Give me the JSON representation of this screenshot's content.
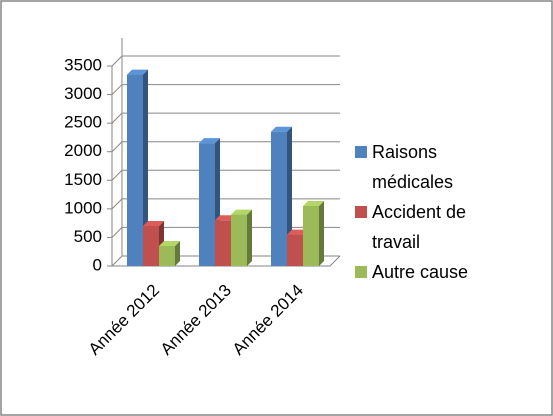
{
  "chart_data": {
    "type": "bar3d",
    "categories": [
      "Année 2012",
      "Année 2013",
      "Année 2014"
    ],
    "series": [
      {
        "name": "Raisons médicales",
        "color": "#4f81bd",
        "values": [
          3350,
          2150,
          2350
        ]
      },
      {
        "name": "Accident de travail",
        "color": "#c0504d",
        "values": [
          700,
          800,
          550
        ]
      },
      {
        "name": "Autre cause",
        "color": "#9bbb59",
        "values": [
          350,
          900,
          1050
        ]
      }
    ],
    "ylim": [
      0,
      3500
    ],
    "yticks": [
      0,
      500,
      1000,
      1500,
      2000,
      2500,
      3000,
      3500
    ],
    "grid": true,
    "legend": "right"
  }
}
